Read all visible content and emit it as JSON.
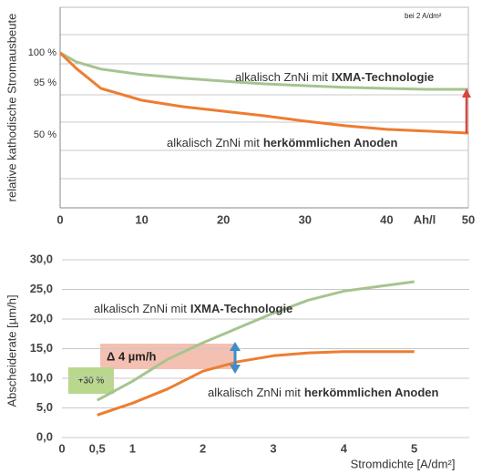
{
  "chart_data": [
    {
      "type": "line",
      "y_label": "relative kathodische Stromausbeute",
      "x_label": "Ah/l",
      "annotation": "bei 2 A/dm²",
      "y_scale": "schematic",
      "x": [
        0,
        2,
        5,
        10,
        15,
        20,
        25,
        30,
        35,
        40,
        45,
        50
      ],
      "xlim": [
        0,
        50
      ],
      "xticks": [
        0,
        10,
        20,
        30,
        40,
        50
      ],
      "yticks": [
        {
          "value": 100,
          "label": "100 %"
        },
        {
          "value": 95,
          "label": "95 %"
        },
        {
          "value": 50,
          "label": "50 %"
        }
      ],
      "series": [
        {
          "label": {
            "text": "alkalisch ZnNi mit",
            "bold": "IXMA-Technologie"
          },
          "color": "#a6c48e",
          "values": [
            100,
            98.5,
            97.3,
            96.4,
            95.8,
            95.3,
            94.2,
            92.6,
            91.1,
            90.3,
            89.5,
            89.5
          ]
        },
        {
          "label": {
            "text": "alkalisch ZnNi mit",
            "bold": "herkömmlichen Anoden"
          },
          "color": "#ed7d31",
          "values": [
            100,
            97.4,
            90.3,
            80.0,
            74.5,
            70.5,
            66.6,
            61.9,
            57.9,
            54.8,
            53.2,
            51.6
          ]
        }
      ]
    },
    {
      "type": "line",
      "y_label": "Abscheiderate [µm/h]",
      "x_label": "Stromdichte [A/dm²]",
      "annotations": [
        "Δ 4 µm/h",
        "+30 %"
      ],
      "x": [
        0.5,
        1,
        1.5,
        2,
        2.5,
        3,
        3.5,
        4,
        5
      ],
      "xlim": [
        0,
        5.78
      ],
      "ylim": [
        0,
        30
      ],
      "xticks": [
        0,
        {
          "value": 0.5,
          "label": "0,5"
        },
        1,
        2,
        3,
        4,
        5
      ],
      "yticks": [
        {
          "value": 0,
          "label": "0,0"
        },
        {
          "value": 5,
          "label": "5,0"
        },
        {
          "value": 10,
          "label": "10,0"
        },
        {
          "value": 15,
          "label": "15,0"
        },
        {
          "value": 20,
          "label": "20,0"
        },
        {
          "value": 25,
          "label": "25,0"
        },
        {
          "value": 30,
          "label": "30,0"
        }
      ],
      "grid": true,
      "series": [
        {
          "label": {
            "text": "alkalisch ZnNi mit",
            "bold": "IXMA-Technologie"
          },
          "color": "#a6c48e",
          "values": [
            6.3,
            9.5,
            13.2,
            16.0,
            18.5,
            21.0,
            23.2,
            24.7,
            26.3
          ]
        },
        {
          "label": {
            "text": "alkalisch ZnNi mit",
            "bold": "herkömmlichen Anoden"
          },
          "color": "#ed7d31",
          "values": [
            3.8,
            5.8,
            8.2,
            11.2,
            12.8,
            13.8,
            14.3,
            14.5,
            14.5
          ]
        }
      ]
    }
  ]
}
